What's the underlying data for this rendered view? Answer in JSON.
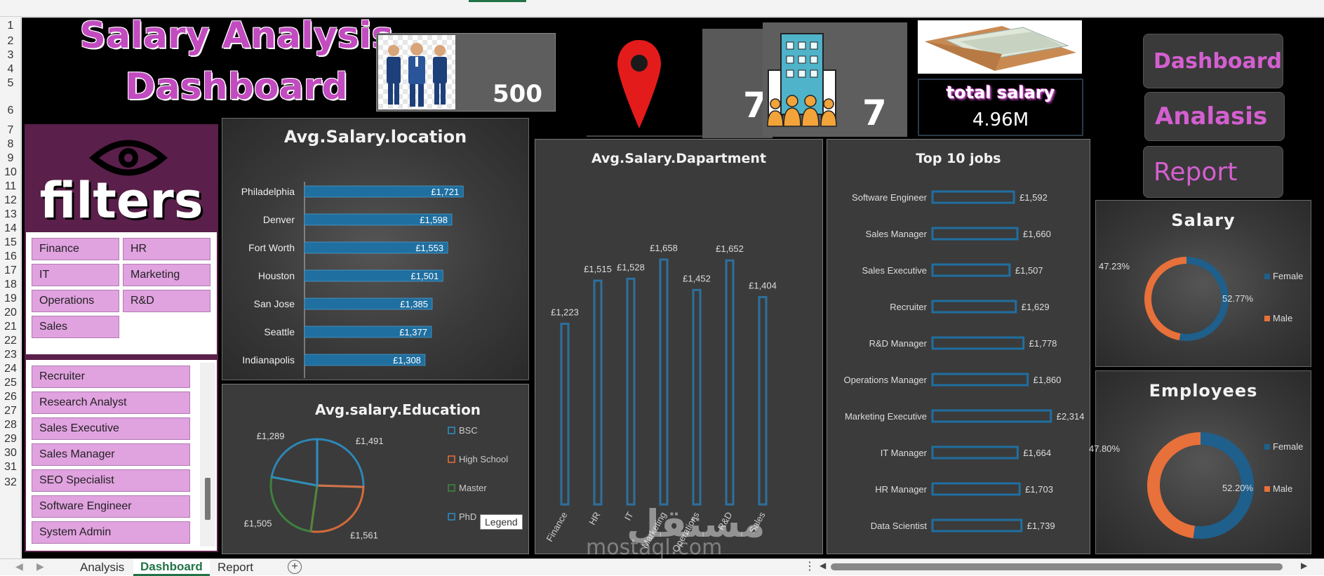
{
  "sheet": {
    "row_numbers": [
      "1",
      "2",
      "3",
      "4",
      "5",
      "6",
      "7",
      "8",
      "9",
      "10",
      "11",
      "12",
      "13",
      "14",
      "15",
      "16",
      "17",
      "18",
      "19",
      "20",
      "21",
      "22",
      "23",
      "24",
      "25",
      "26",
      "27",
      "28",
      "29",
      "30",
      "31",
      "32"
    ],
    "tabs": [
      {
        "label": "Analysis",
        "active": false
      },
      {
        "label": "Dashboard",
        "active": true
      },
      {
        "label": "Report",
        "active": false
      }
    ],
    "add_sheet_symbol": "+"
  },
  "header": {
    "title_line1": "Salary Analysis",
    "title_line2": "Dashboard",
    "employees_count": "500",
    "locations_count": "7",
    "departments_count": "7",
    "total_salary_label": "total salary",
    "total_salary_value": "4.96M"
  },
  "nav": {
    "dashboard": "Dashboard",
    "analysis": "Analasis",
    "report": "Report"
  },
  "filters": {
    "title": "filters",
    "departments": [
      "Finance",
      "HR",
      "IT",
      "Marketing",
      "Operations",
      "R&D",
      "Sales"
    ],
    "jobs": [
      "Recruiter",
      "Research Analyst",
      "Sales Executive",
      "Sales Manager",
      "SEO Specialist",
      "Software Engineer",
      "System Admin"
    ]
  },
  "colors": {
    "bar_blue": "#1f6fa0",
    "female_blue": "#1f5f8b",
    "male_orange": "#e8703a",
    "title_pink": "#c24bbf",
    "slicer_pink": "#e1a2e0",
    "filter_purple": "#5a1f4a"
  },
  "watermark": {
    "arabic": "مستقل",
    "latin": "mostaql.com"
  },
  "chart_data": [
    {
      "id": "location",
      "type": "bar",
      "orientation": "horizontal",
      "title": "Avg.Salary.location",
      "categories": [
        "Philadelphia",
        "Denver",
        "Fort Worth",
        "Houston",
        "San Jose",
        "Seattle",
        "Indianapolis"
      ],
      "values": [
        1721,
        1598,
        1553,
        1501,
        1385,
        1377,
        1308
      ],
      "labels": [
        "£1,721",
        "£1,598",
        "£1,553",
        "£1,501",
        "£1,385",
        "£1,377",
        "£1,308"
      ]
    },
    {
      "id": "education",
      "type": "pie",
      "title": "Avg.salary.Education",
      "categories": [
        "BSC",
        "High School",
        "Master",
        "PhD"
      ],
      "values": [
        1491,
        1561,
        1505,
        1289
      ],
      "labels": [
        "£1,491",
        "£1,561",
        "£1,505",
        "£1,289"
      ],
      "colors": [
        "#2e8fc4",
        "#e8703a",
        "#3f8a3f",
        "#2e8fc4"
      ],
      "legend_tooltip": "Legend"
    },
    {
      "id": "department",
      "type": "bar",
      "orientation": "vertical",
      "title": "Avg.Salary.Dapartment",
      "categories": [
        "Finance",
        "HR",
        "IT",
        "Marketing",
        "Operations",
        "R&D",
        "Sales"
      ],
      "values": [
        1223,
        1515,
        1528,
        1658,
        1452,
        1652,
        1404
      ],
      "labels": [
        "£1,223",
        "£1,515",
        "£1,528",
        "£1,658",
        "£1,452",
        "£1,652",
        "£1,404"
      ]
    },
    {
      "id": "jobs",
      "type": "bar",
      "orientation": "horizontal",
      "title": "Top 10 jobs",
      "categories": [
        "Software Engineer",
        "Sales Manager",
        "Sales Executive",
        "Recruiter",
        "R&D Manager",
        "Operations Manager",
        "Marketing Executive",
        "IT Manager",
        "HR Manager",
        "Data Scientist"
      ],
      "values": [
        1592,
        1660,
        1507,
        1629,
        1778,
        1860,
        2314,
        1664,
        1703,
        1739
      ],
      "labels": [
        "£1,592",
        "£1,660",
        "£1,507",
        "£1,629",
        "£1,778",
        "£1,860",
        "£2,314",
        "£1,664",
        "£1,703",
        "£1,739"
      ]
    },
    {
      "id": "salary_gender",
      "type": "pie",
      "subtype": "donut",
      "title": "Salary",
      "categories": [
        "Female",
        "Male"
      ],
      "values": [
        52.77,
        47.23
      ],
      "labels": [
        "52.77%",
        "47.23%"
      ]
    },
    {
      "id": "employees_gender",
      "type": "pie",
      "subtype": "donut",
      "title": "Employees",
      "categories": [
        "Female",
        "Male"
      ],
      "values": [
        52.2,
        47.8
      ],
      "labels": [
        "52.20%",
        "47.80%"
      ]
    }
  ]
}
